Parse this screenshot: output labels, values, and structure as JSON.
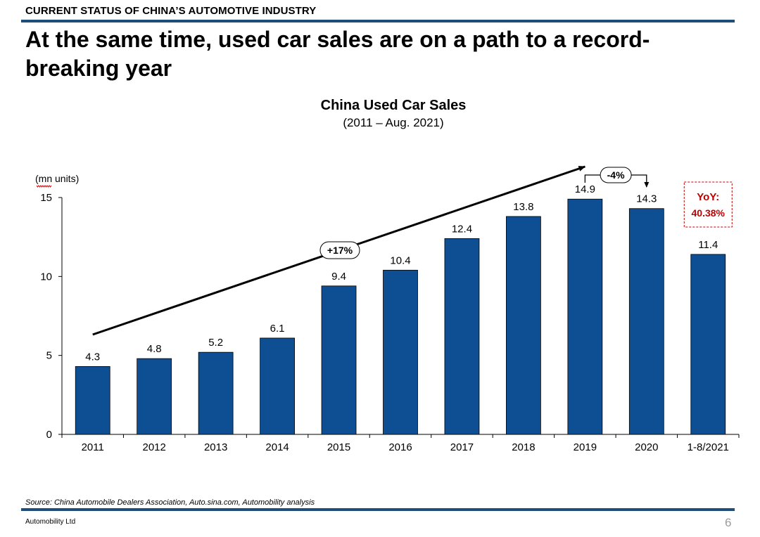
{
  "slide": {
    "section_label": "CURRENT STATUS OF CHINA’S AUTOMOTIVE INDUSTRY",
    "headline": "At the same time, used car sales are on a path to a record-breaking year",
    "source": "Source: China Automobile Dealers Association, Auto.sina.com, Automobility analysis",
    "company": "Automobility Ltd",
    "page_number": "6",
    "rule_color": "#1f4e79"
  },
  "chart_data": {
    "type": "bar",
    "title": "China Used Car Sales",
    "subtitle": "(2011 – Aug. 2021)",
    "ylabel": "(mn units)",
    "xlabel": "",
    "categories": [
      "2011",
      "2012",
      "2013",
      "2014",
      "2015",
      "2016",
      "2017",
      "2018",
      "2019",
      "2020",
      "1-8/2021"
    ],
    "values": [
      4.3,
      4.8,
      5.2,
      6.1,
      9.4,
      10.4,
      12.4,
      13.8,
      14.9,
      14.3,
      11.4
    ],
    "value_labels": [
      "4.3",
      "4.8",
      "5.2",
      "6.1",
      "9.4",
      "10.4",
      "12.4",
      "13.8",
      "14.9",
      "14.3",
      "11.4"
    ],
    "ylim": [
      0,
      15
    ],
    "yticks": [
      0,
      5,
      10,
      15
    ],
    "grid": false,
    "bar_color": "#0d4f92",
    "annotations": [
      {
        "text": "+17%",
        "kind": "growth-arrow",
        "from": "2011",
        "to": "2019"
      },
      {
        "text": "-4%",
        "kind": "bracket",
        "from": "2019",
        "to": "2020"
      },
      {
        "text_line1": "YoY:",
        "text_line2": "40.38%",
        "kind": "callout-box",
        "at": "1-8/2021",
        "color": "#c00000"
      }
    ]
  }
}
